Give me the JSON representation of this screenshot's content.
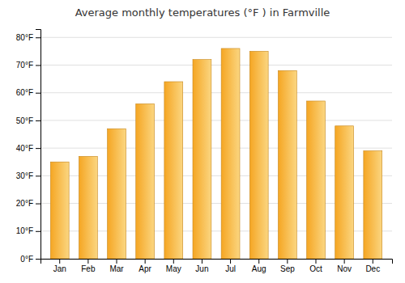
{
  "chart_data": {
    "type": "bar",
    "title": "Average monthly temperatures (°F ) in Farmville",
    "categories": [
      "Jan",
      "Feb",
      "Mar",
      "Apr",
      "May",
      "Jun",
      "Jul",
      "Aug",
      "Sep",
      "Oct",
      "Nov",
      "Dec"
    ],
    "values": [
      35,
      37,
      47,
      56,
      64,
      72,
      76,
      75,
      68,
      57,
      48,
      39
    ],
    "color": "#F5A623",
    "ylim": [
      0,
      83
    ],
    "yticks": [
      {
        "value": 0,
        "label": "0°F"
      },
      {
        "value": 10,
        "label": "10°F"
      },
      {
        "value": 20,
        "label": "20°F"
      },
      {
        "value": 30,
        "label": "30°F"
      },
      {
        "value": 40,
        "label": "40°F"
      },
      {
        "value": 50,
        "label": "50°F"
      },
      {
        "value": 60,
        "label": "60°F"
      },
      {
        "value": 70,
        "label": "70°F"
      },
      {
        "value": 80,
        "label": "80°F"
      }
    ],
    "grid": true
  }
}
